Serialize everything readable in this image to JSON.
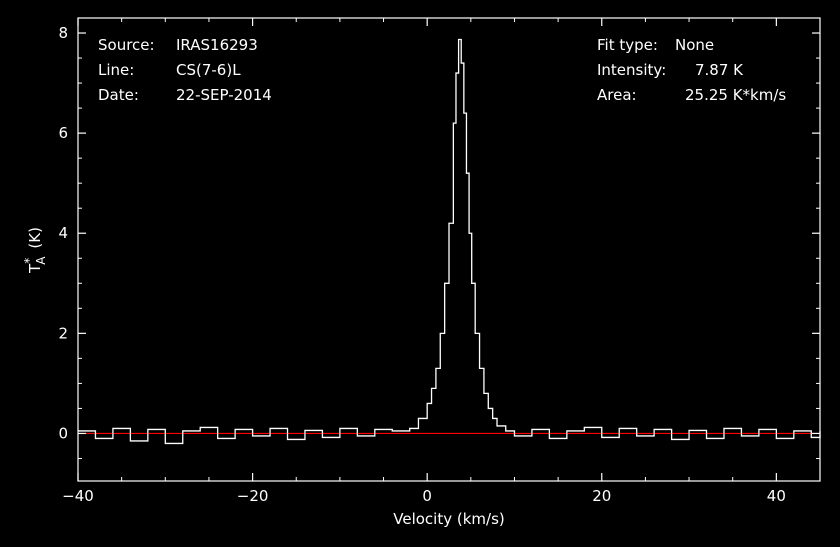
{
  "header": {
    "left": [
      {
        "label": "Source:",
        "value": "IRAS16293"
      },
      {
        "label": "Line:",
        "value": "CS(7-6)L"
      },
      {
        "label": "Date:",
        "value": "22-SEP-2014"
      }
    ],
    "right": [
      {
        "label": "Fit type:",
        "value": "None"
      },
      {
        "label": "Intensity:",
        "value": "7.87 K"
      },
      {
        "label": "Area:",
        "value": "25.25 K*km/s"
      }
    ]
  },
  "colors": {
    "background": "#000000",
    "spectrum": "#ffffff",
    "baseline": "#ff0000",
    "axes": "#ffffff"
  },
  "chart_data": {
    "type": "line",
    "xlabel": "Velocity (km/s)",
    "ylabel_main": "T",
    "ylabel_sup": "*",
    "ylabel_sub": "A",
    "ylabel_unit": "(K)",
    "xlim": [
      -40,
      45
    ],
    "ylim": [
      -0.95,
      8.3
    ],
    "xticks": [
      -40,
      -20,
      0,
      20,
      40
    ],
    "xtick_labels": [
      "−40",
      "−20",
      "0",
      "20",
      "40"
    ],
    "yticks": [
      0,
      2,
      4,
      6,
      8
    ],
    "ytick_labels": [
      "0",
      "2",
      "4",
      "6",
      "8"
    ],
    "grid": false,
    "baseline": 0,
    "series": [
      {
        "x": [
          -40,
          -38,
          -36,
          -34,
          -32,
          -30,
          -28,
          -26,
          -24,
          -22,
          -20,
          -18,
          -16,
          -14,
          -12,
          -10,
          -8,
          -6,
          -4,
          -2,
          -1,
          0,
          0.5,
          1,
          1.5,
          2,
          2.5,
          3,
          3.3,
          3.6,
          3.9,
          4.2,
          4.5,
          4.8,
          5.1,
          5.5,
          6,
          6.5,
          7,
          7.5,
          8,
          9,
          10,
          12,
          14,
          16,
          18,
          20,
          22,
          24,
          26,
          28,
          30,
          32,
          34,
          36,
          38,
          40,
          42,
          44,
          45
        ],
        "y": [
          0.05,
          -0.1,
          0.1,
          -0.15,
          0.08,
          -0.2,
          0.05,
          0.12,
          -0.1,
          0.08,
          -0.05,
          0.1,
          -0.12,
          0.06,
          -0.08,
          0.1,
          -0.05,
          0.08,
          0.05,
          0.1,
          0.3,
          0.6,
          0.9,
          1.3,
          2.0,
          3.0,
          4.2,
          6.2,
          7.2,
          7.87,
          7.4,
          6.4,
          5.2,
          4.0,
          3.0,
          2.0,
          1.3,
          0.8,
          0.5,
          0.3,
          0.15,
          0.05,
          -0.05,
          0.08,
          -0.1,
          0.05,
          0.12,
          -0.08,
          0.1,
          -0.05,
          0.08,
          -0.12,
          0.06,
          -0.1,
          0.1,
          -0.05,
          0.08,
          -0.1,
          0.05,
          -0.08,
          0.05
        ]
      }
    ]
  }
}
